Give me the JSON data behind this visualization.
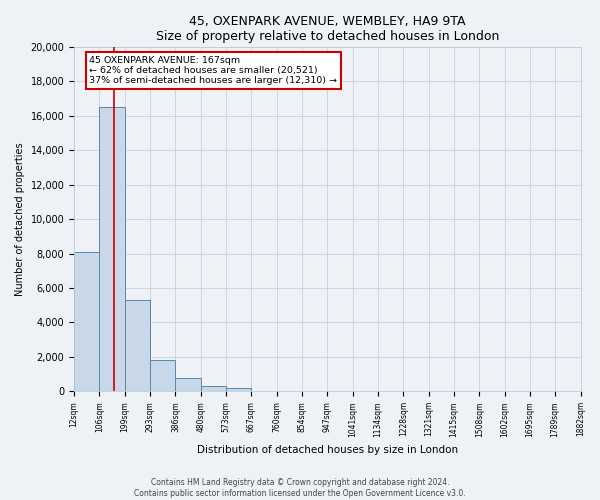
{
  "title": "45, OXENPARK AVENUE, WEMBLEY, HA9 9TA",
  "subtitle": "Size of property relative to detached houses in London",
  "xlabel": "Distribution of detached houses by size in London",
  "ylabel": "Number of detached properties",
  "bin_labels": [
    "12sqm",
    "106sqm",
    "199sqm",
    "293sqm",
    "386sqm",
    "480sqm",
    "573sqm",
    "667sqm",
    "760sqm",
    "854sqm",
    "947sqm",
    "1041sqm",
    "1134sqm",
    "1228sqm",
    "1321sqm",
    "1415sqm",
    "1508sqm",
    "1602sqm",
    "1695sqm",
    "1789sqm",
    "1882sqm"
  ],
  "bar_values": [
    8100,
    16500,
    5300,
    1800,
    750,
    280,
    220,
    0,
    0,
    0,
    0,
    0,
    0,
    0,
    0,
    0,
    0,
    0,
    0,
    0
  ],
  "bar_color": "#c8d8e8",
  "bar_edge_color": "#5588aa",
  "ylim": [
    0,
    20000
  ],
  "yticks": [
    0,
    2000,
    4000,
    6000,
    8000,
    10000,
    12000,
    14000,
    16000,
    18000,
    20000
  ],
  "red_line_x": 1.57,
  "annotation_line1": "45 OXENPARK AVENUE: 167sqm",
  "annotation_line2": "← 62% of detached houses are smaller (20,521)",
  "annotation_line3": "37% of semi-detached houses are larger (12,310) →",
  "footer_line1": "Contains HM Land Registry data © Crown copyright and database right 2024.",
  "footer_line2": "Contains public sector information licensed under the Open Government Licence v3.0.",
  "background_color": "#eef2f6",
  "plot_bg_color": "#eef2f6",
  "grid_color": "#c0ccd8",
  "red_line_color": "#cc0000",
  "annotation_box_edge_color": "#cc0000"
}
